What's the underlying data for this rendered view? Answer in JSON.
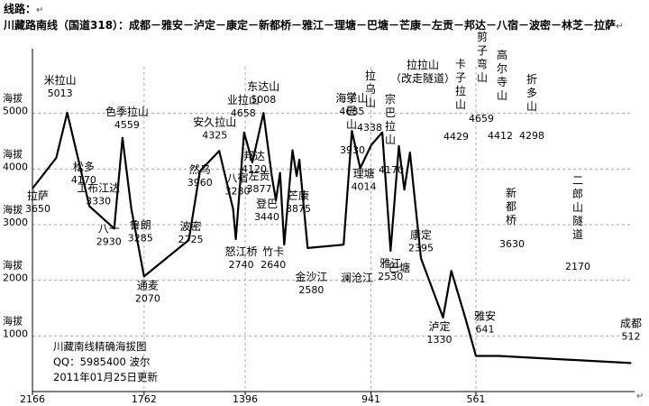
{
  "header": {
    "line_label": "线路：",
    "route_title": "川藏路南线（国道318）：成都－雅安－泸定－康定－新都桥－雅江－理塘－巴塘－芒康－左贡－邦达－八宿－波密－林芝－拉萨",
    "newline_mark": "↵"
  },
  "watermark": {
    "line1": "川藏南线精确海拔图",
    "line2": "QQ：5985400  波尔",
    "line3": "2011年01月25日更新"
  },
  "chart_data": {
    "type": "line",
    "title": "川藏南线精确海拔图",
    "xlabel": "",
    "ylabel": "海拔",
    "x_reversed": true,
    "x_ticks": [
      2166,
      1762,
      1396,
      941,
      561
    ],
    "xlim": [
      2166,
      0
    ],
    "y_ticks": [
      1000,
      2000,
      3000,
      4000,
      5000
    ],
    "y_tick_prefix": "海拔",
    "ylim": [
      0,
      6000
    ],
    "grid": true,
    "series": [
      {
        "values": [
          {
            "x": 2166,
            "y": 3650
          },
          {
            "x": 2080,
            "y": 4200
          },
          {
            "x": 2040,
            "y": 5013
          },
          {
            "x": 2000,
            "y": 4170
          },
          {
            "x": 1960,
            "y": 3330
          },
          {
            "x": 1870,
            "y": 2930
          },
          {
            "x": 1840,
            "y": 4559
          },
          {
            "x": 1808,
            "y": 3285
          },
          {
            "x": 1762,
            "y": 2070
          },
          {
            "x": 1600,
            "y": 2725
          },
          {
            "x": 1560,
            "y": 3960
          },
          {
            "x": 1490,
            "y": 4325
          },
          {
            "x": 1440,
            "y": 3280
          },
          {
            "x": 1430,
            "y": 2740
          },
          {
            "x": 1400,
            "y": 4658
          },
          {
            "x": 1370,
            "y": 4120
          },
          {
            "x": 1330,
            "y": 5008
          },
          {
            "x": 1300,
            "y": 3877
          },
          {
            "x": 1285,
            "y": 3440
          },
          {
            "x": 1270,
            "y": 3930
          },
          {
            "x": 1255,
            "y": 2640
          },
          {
            "x": 1225,
            "y": 4338
          },
          {
            "x": 1210,
            "y": 3875
          },
          {
            "x": 1200,
            "y": 4170
          },
          {
            "x": 1170,
            "y": 2580
          },
          {
            "x": 1040,
            "y": 2640
          },
          {
            "x": 1010,
            "y": 4685
          },
          {
            "x": 980,
            "y": 4014
          },
          {
            "x": 940,
            "y": 4429
          },
          {
            "x": 900,
            "y": 4659
          },
          {
            "x": 870,
            "y": 2530
          },
          {
            "x": 840,
            "y": 4412
          },
          {
            "x": 820,
            "y": 3630
          },
          {
            "x": 800,
            "y": 4298
          },
          {
            "x": 760,
            "y": 2395
          },
          {
            "x": 680,
            "y": 1330
          },
          {
            "x": 650,
            "y": 2170
          },
          {
            "x": 600,
            "y": 1330
          },
          {
            "x": 561,
            "y": 641
          },
          {
            "x": 480,
            "y": 641
          },
          {
            "x": 0,
            "y": 512
          }
        ]
      }
    ],
    "annotations": [
      {
        "name": "米拉山",
        "value": "5013",
        "x": 2040,
        "y": 5013
      },
      {
        "name": "拉萨",
        "value": "3650",
        "x": 2166,
        "y": 3650
      },
      {
        "name": "松多",
        "value": "4170",
        "x": 2000,
        "y": 4170
      },
      {
        "name": "工布江达",
        "value": "3330",
        "x": 1960,
        "y": 3330
      },
      {
        "name": "八一",
        "value": "2930",
        "x": 1870,
        "y": 2930
      },
      {
        "name": "色季拉山",
        "value": "4559",
        "x": 1840,
        "y": 4559
      },
      {
        "name": "鲁朗",
        "value": "3285",
        "x": 1808,
        "y": 3285
      },
      {
        "name": "通麦",
        "value": "2070",
        "x": 1762,
        "y": 2070
      },
      {
        "name": "波密",
        "value": "2725",
        "x": 1600,
        "y": 2725
      },
      {
        "name": "然乌",
        "value": "3960",
        "x": 1560,
        "y": 3960
      },
      {
        "name": "安久拉山",
        "value": "4325",
        "x": 1490,
        "y": 4325
      },
      {
        "name": "八宿",
        "value": "3280",
        "x": 1440,
        "y": 3280
      },
      {
        "name": "怒江桥",
        "value": "2740",
        "x": 1430,
        "y": 2740
      },
      {
        "name": "业拉山",
        "value": "4658",
        "x": 1400,
        "y": 4658
      },
      {
        "name": "邦达",
        "value": "4120",
        "x": 1370,
        "y": 4120
      },
      {
        "name": "东达山",
        "value": "5008",
        "x": 1330,
        "y": 5008
      },
      {
        "name": "左贡",
        "value": "3877",
        "x": 1300,
        "y": 3877
      },
      {
        "name": "登巴",
        "value": "3440",
        "x": 1285,
        "y": 3440
      },
      {
        "name": "觉巴山",
        "value": "3930",
        "x": 1270,
        "y": 3930
      },
      {
        "name": "竹卡",
        "value": "2640",
        "x": 1255,
        "y": 2640
      },
      {
        "name": "澜沧江",
        "value": "",
        "x": 1255,
        "y": 2640
      },
      {
        "name": "拉乌山",
        "value": "4338",
        "x": 1225,
        "y": 4338
      },
      {
        "name": "芒康",
        "value": "3875",
        "x": 1210,
        "y": 3875
      },
      {
        "name": "宗巴拉山",
        "value": "4170",
        "x": 1200,
        "y": 4170
      },
      {
        "name": "巴塘",
        "value": "",
        "x": 1170,
        "y": 2580
      },
      {
        "name": "金沙江",
        "value": "2580",
        "x": 1170,
        "y": 2580
      },
      {
        "name": "拉拉山（改走隧道）",
        "value": "",
        "x": 1040,
        "y": 2640
      },
      {
        "name": "海子山",
        "value": "4685",
        "x": 1010,
        "y": 4685
      },
      {
        "name": "理塘",
        "value": "4014",
        "x": 980,
        "y": 4014
      },
      {
        "name": "卡子拉山",
        "value": "4429",
        "x": 940,
        "y": 4429
      },
      {
        "name": "剪子弯山",
        "value": "4659",
        "x": 900,
        "y": 4659
      },
      {
        "name": "雅江",
        "value": "2530",
        "x": 870,
        "y": 2530
      },
      {
        "name": "高尔寺山",
        "value": "4412",
        "x": 840,
        "y": 4412
      },
      {
        "name": "新都桥",
        "value": "3630",
        "x": 820,
        "y": 3630
      },
      {
        "name": "折多山",
        "value": "4298",
        "x": 800,
        "y": 4298
      },
      {
        "name": "康定",
        "value": "2395",
        "x": 760,
        "y": 2395
      },
      {
        "name": "泸定",
        "value": "1330",
        "x": 680,
        "y": 1330
      },
      {
        "name": "二郎山隧道",
        "value": "2170",
        "x": 650,
        "y": 2170
      },
      {
        "name": "雅安",
        "value": "641",
        "x": 561,
        "y": 641
      },
      {
        "name": "成都",
        "value": "512",
        "x": 0,
        "y": 512
      }
    ]
  }
}
